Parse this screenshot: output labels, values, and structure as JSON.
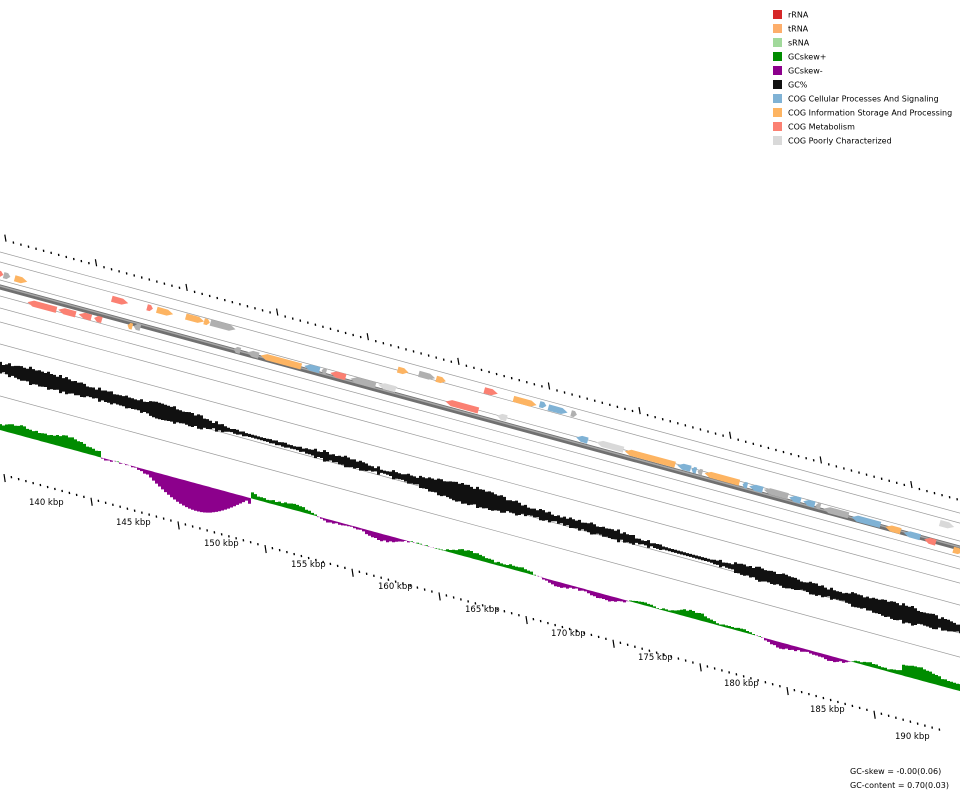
{
  "legend": [
    {
      "label": "rRNA",
      "color": "#d62728"
    },
    {
      "label": "tRNA",
      "color": "#fdae6b"
    },
    {
      "label": "sRNA",
      "color": "#a1d99b"
    },
    {
      "label": "GCskew+",
      "color": "#008c00"
    },
    {
      "label": "GCskew-",
      "color": "#8c008c"
    },
    {
      "label": "GC%",
      "color": "#111111"
    },
    {
      "label": "COG Cellular Processes And Signaling",
      "color": "#7fb2d5"
    },
    {
      "label": "COG Information Storage And Processing",
      "color": "#fdb462"
    },
    {
      "label": "COG Metabolism",
      "color": "#fb8072"
    },
    {
      "label": "COG Poorly Characterized",
      "color": "#d9d9d9"
    }
  ],
  "ruler": {
    "unit": "kbp",
    "labels": [
      "140 kbp",
      "145 kbp",
      "150 kbp",
      "155 kbp",
      "160 kbp",
      "165 kbp",
      "170 kbp",
      "175 kbp",
      "180 kbp",
      "185 kbp",
      "190 kbp"
    ]
  },
  "stats": {
    "gc_skew": "GC-skew = -0.00(0.06)",
    "gc_content": "GC-content = 0.70(0.03)"
  }
}
